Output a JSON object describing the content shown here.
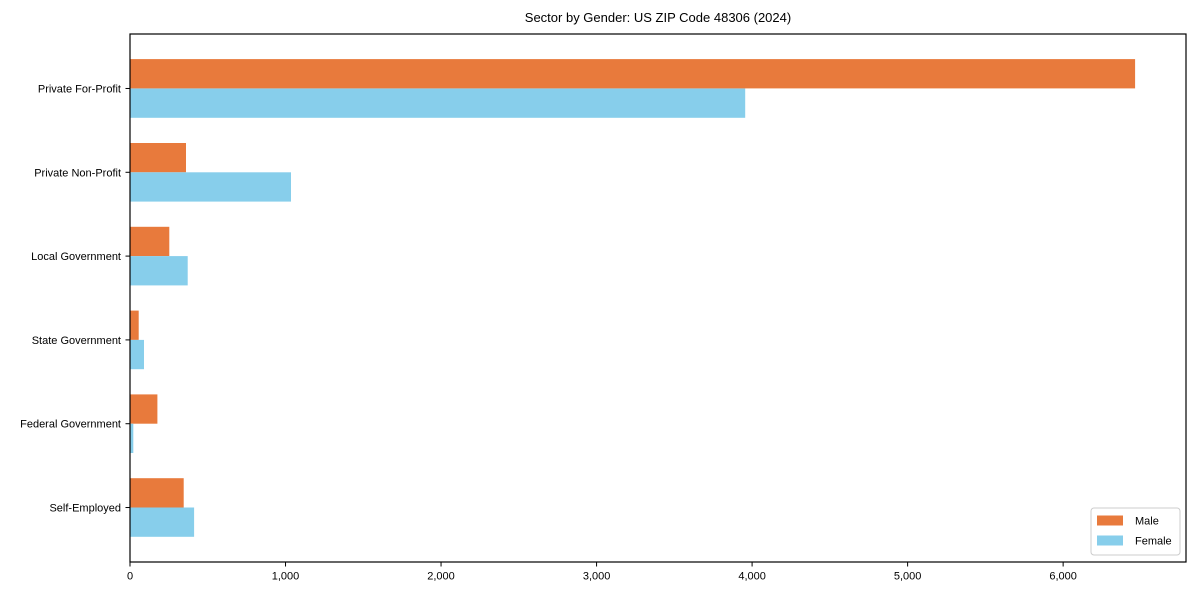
{
  "chart_data": {
    "type": "bar",
    "orientation": "horizontal",
    "title": "Sector by Gender: US ZIP Code 48306 (2024)",
    "categories": [
      "Private For-Profit",
      "Private Non-Profit",
      "Local Government",
      "State Government",
      "Federal Government",
      "Self-Employed"
    ],
    "series": [
      {
        "name": "Male",
        "color": "#e87a3c",
        "values": [
          6463,
          360,
          253,
          56,
          176,
          345
        ]
      },
      {
        "name": "Female",
        "color": "#87ceeb",
        "values": [
          3956,
          1035,
          371,
          90,
          21,
          412
        ]
      }
    ],
    "xlim": [
      0,
      6790
    ],
    "x_ticks": [
      0,
      1000,
      2000,
      3000,
      4000,
      5000,
      6000
    ],
    "x_tick_labels": [
      "0",
      "1,000",
      "2,000",
      "3,000",
      "4,000",
      "5,000",
      "6,000"
    ],
    "xlabel": "",
    "ylabel": "",
    "grid": false,
    "legend": {
      "position": "lower right",
      "entries": [
        "Male",
        "Female"
      ]
    }
  }
}
